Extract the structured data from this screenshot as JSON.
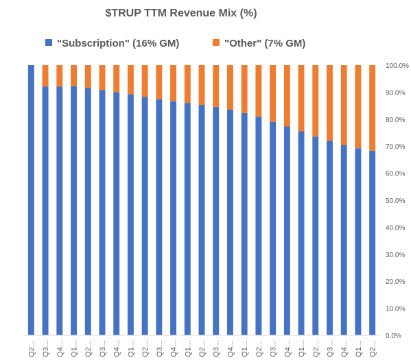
{
  "chart_data": {
    "type": "bar",
    "stacked": true,
    "title": "$TRUP TTM Revenue Mix (%)",
    "xlabel": "",
    "ylabel": "",
    "ylim": [
      0,
      100
    ],
    "y_ticks": [
      0,
      10,
      20,
      30,
      40,
      50,
      60,
      70,
      80,
      90,
      100
    ],
    "y_tick_labels": [
      "0.0%",
      "10.0%",
      "20.0%",
      "30.0%",
      "40.0%",
      "50.0%",
      "60.0%",
      "70.0%",
      "80.0%",
      "90.0%",
      "100.0%"
    ],
    "y_axis_position": "right",
    "grid": false,
    "legend_position": "top",
    "categories": [
      "Q2...",
      "Q3...",
      "Q4...",
      "Q1...",
      "Q2...",
      "Q3...",
      "Q4...",
      "Q1...",
      "Q2...",
      "Q3...",
      "Q4...",
      "Q1...",
      "Q2...",
      "Q3...",
      "Q4...",
      "Q1...",
      "Q2...",
      "Q3...",
      "Q4...",
      "Q1...",
      "Q2...",
      "Q3...",
      "Q4...",
      "Q1...",
      "Q2..."
    ],
    "series": [
      {
        "name": "\"Subscription\" (16% GM)",
        "color": "#4472C4",
        "values": [
          100,
          92,
          92,
          92.2,
          91.6,
          90.8,
          90,
          89.2,
          88.2,
          87.3,
          86.6,
          86,
          85.3,
          84.5,
          83.5,
          82.3,
          80.8,
          79,
          77.3,
          75.5,
          73.5,
          72,
          70.5,
          69.2,
          68.3
        ]
      },
      {
        "name": "\"Other\" (7% GM)",
        "color": "#ED7D31",
        "values": [
          0,
          8,
          8,
          7.8,
          8.4,
          9.2,
          10,
          10.8,
          11.8,
          12.7,
          13.4,
          14,
          14.7,
          15.5,
          16.5,
          17.7,
          19.2,
          21,
          22.7,
          24.5,
          26.5,
          28,
          29.5,
          30.8,
          31.7
        ]
      }
    ]
  }
}
